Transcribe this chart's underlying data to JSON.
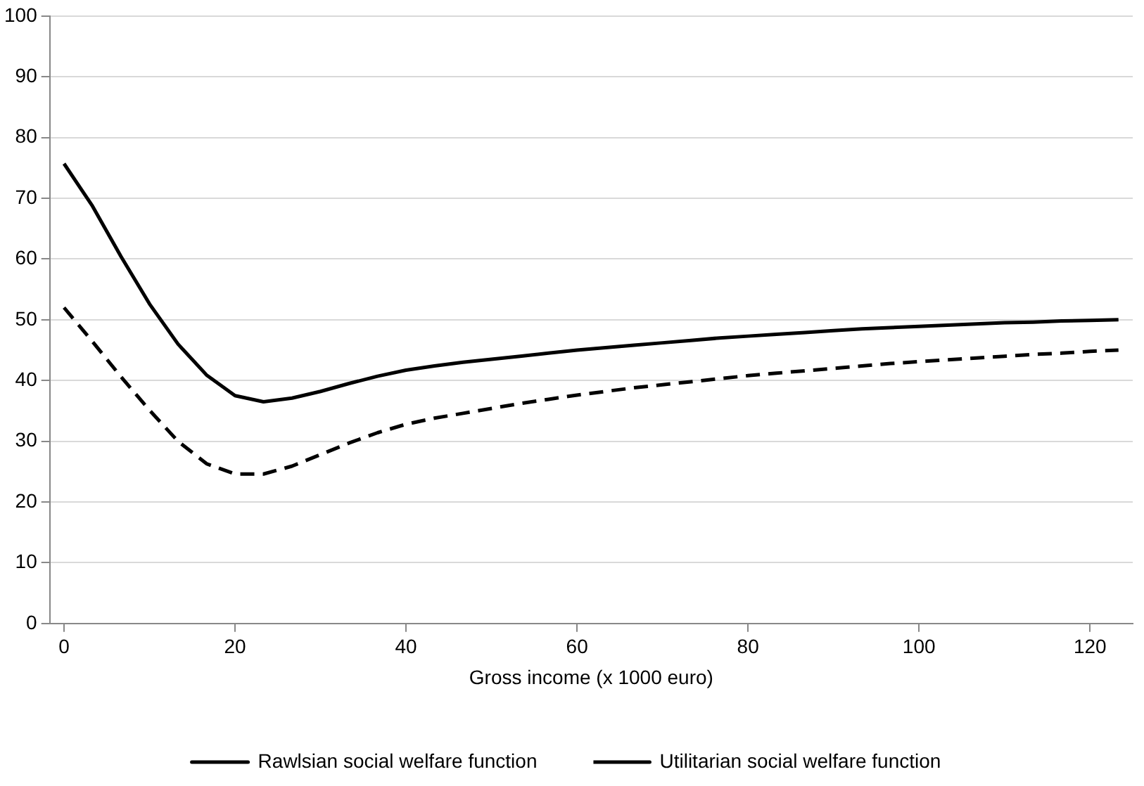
{
  "chart_data": {
    "type": "line",
    "xlabel": "Gross income (x 1000 euro)",
    "x": [
      0,
      3.33,
      6.67,
      10,
      13.33,
      16.67,
      20,
      23.33,
      26.67,
      30,
      33.33,
      36.67,
      40,
      43.33,
      46.67,
      50,
      53.33,
      56.67,
      60,
      63.33,
      66.67,
      70,
      73.33,
      76.67,
      80,
      83.33,
      86.67,
      90,
      93.33,
      96.67,
      100,
      103.33,
      106.67,
      110,
      113.33,
      116.67,
      120,
      123.33
    ],
    "series": [
      {
        "name": "Rawlsian social welfare function",
        "color": "#000000",
        "line_style": "solid",
        "values": [
          75.7,
          68.7,
          60.4,
          52.6,
          46.0,
          40.9,
          37.5,
          36.5,
          37.1,
          38.2,
          39.5,
          40.7,
          41.7,
          42.4,
          43.0,
          43.5,
          44.0,
          44.5,
          45.0,
          45.4,
          45.8,
          46.2,
          46.6,
          47.0,
          47.3,
          47.6,
          47.9,
          48.2,
          48.5,
          48.7,
          48.9,
          49.1,
          49.3,
          49.5,
          49.6,
          49.8,
          49.9,
          50.0
        ]
      },
      {
        "name": "Utilitarian social welfare function",
        "color": "#000000",
        "line_style": "dashed",
        "values": [
          52.0,
          46.4,
          40.6,
          35.1,
          30.0,
          26.3,
          24.6,
          24.6,
          25.9,
          27.8,
          29.7,
          31.4,
          32.8,
          33.8,
          34.6,
          35.4,
          36.2,
          36.9,
          37.6,
          38.2,
          38.8,
          39.3,
          39.8,
          40.3,
          40.8,
          41.2,
          41.6,
          42.0,
          42.4,
          42.8,
          43.1,
          43.4,
          43.7,
          44.0,
          44.3,
          44.5,
          44.8,
          45.0
        ]
      }
    ],
    "xlim": [
      -1.67,
      125
    ],
    "xticks": [
      0,
      20,
      40,
      60,
      80,
      100,
      120
    ],
    "ylim": [
      0,
      100
    ],
    "yticks": [
      0,
      10,
      20,
      30,
      40,
      50,
      60,
      70,
      80,
      90,
      100
    ],
    "grid": "y",
    "legend": "bottom",
    "marker": "none"
  }
}
